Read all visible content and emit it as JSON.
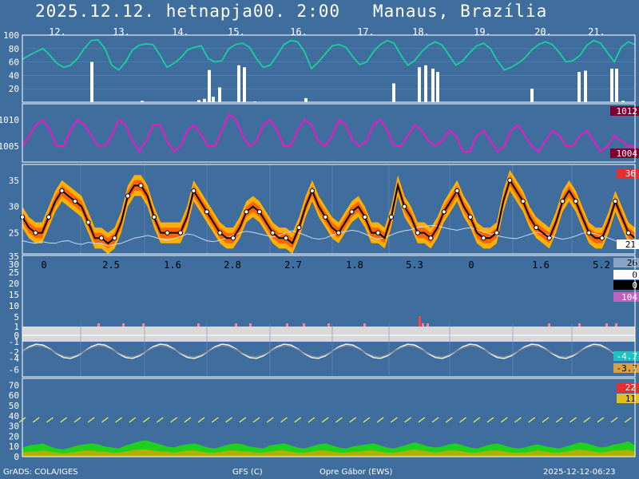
{
  "header": {
    "title": "2025.12.12. hetnapja00. 2:00   Manaus, Brazília"
  },
  "footer": {
    "left": "GrADS: COLA/IGES",
    "center_left": "GFS (C)",
    "center": "Opre Gábor (EWS)",
    "right": "2025-12-12-06:23"
  },
  "colors": {
    "background": "#3f6d9e",
    "humidity": "#19d0a0",
    "pressure": "#e020c0",
    "temp_band_outer": "#ffb000",
    "temp_band_inner": "#ff6400",
    "dewpoint": "#c8d8f0",
    "precip_bar": "#ffffff",
    "wind_arrow": "#ffff40",
    "wind_fill": "#1fd01f",
    "gust_fill": "#b0b000"
  },
  "chart_data": [
    {
      "panel": "humidity_precip",
      "type": "line",
      "day_labels": [
        "12.",
        "13.",
        "14.",
        "15.",
        "16.",
        "17.",
        "18.",
        "19.",
        "20.",
        "21."
      ],
      "yticks": [
        100,
        80,
        60,
        40,
        20
      ],
      "ylim": [
        0,
        100
      ],
      "humidity": [
        64,
        70,
        75,
        80,
        70,
        58,
        52,
        55,
        65,
        80,
        92,
        93,
        80,
        55,
        48,
        60,
        78,
        85,
        87,
        86,
        70,
        52,
        58,
        66,
        78,
        82,
        84,
        65,
        60,
        62,
        80,
        86,
        88,
        82,
        65,
        52,
        55,
        70,
        86,
        92,
        90,
        75,
        50,
        60,
        72,
        84,
        86,
        82,
        68,
        56,
        60,
        75,
        86,
        92,
        88,
        70,
        55,
        62,
        75,
        85,
        90,
        85,
        70,
        55,
        62,
        74,
        84,
        88,
        80,
        62,
        48,
        52,
        58,
        66,
        78,
        86,
        90,
        86,
        74,
        60,
        62,
        70,
        85,
        92,
        88,
        74,
        60,
        82,
        90,
        86
      ],
      "precip_bars": [
        [
          113,
          60
        ],
        [
          176,
          2
        ],
        [
          247,
          3
        ],
        [
          254,
          5
        ],
        [
          260,
          48
        ],
        [
          265,
          8
        ],
        [
          273,
          22
        ],
        [
          297,
          55
        ],
        [
          304,
          52
        ],
        [
          317,
          1
        ],
        [
          381,
          6
        ],
        [
          491,
          28
        ],
        [
          523,
          52
        ],
        [
          531,
          55
        ],
        [
          540,
          50
        ],
        [
          546,
          45
        ],
        [
          664,
          20
        ],
        [
          723,
          45
        ],
        [
          731,
          47
        ],
        [
          764,
          50
        ],
        [
          770,
          50
        ],
        [
          778,
          2
        ]
      ]
    },
    {
      "panel": "pressure",
      "type": "line",
      "yticks": [
        1010,
        1005
      ],
      "ylim": [
        1002,
        1013
      ],
      "values": [
        1005,
        1007,
        1009,
        1010,
        1008,
        1005,
        1005,
        1008,
        1010,
        1009,
        1007,
        1005,
        1005,
        1007,
        1010,
        1009,
        1006,
        1004,
        1006,
        1009,
        1009,
        1006,
        1004,
        1005,
        1008,
        1009,
        1007,
        1005,
        1005,
        1008,
        1011,
        1010,
        1007,
        1005,
        1006,
        1009,
        1010,
        1008,
        1005,
        1005,
        1008,
        1010,
        1009,
        1006,
        1005,
        1007,
        1010,
        1009,
        1006,
        1005,
        1006,
        1009,
        1010,
        1008,
        1005,
        1005,
        1007,
        1009,
        1008,
        1006,
        1005,
        1006,
        1008,
        1007,
        1004,
        1004,
        1007,
        1008,
        1006,
        1004,
        1005,
        1008,
        1009,
        1007,
        1005,
        1004,
        1006,
        1008,
        1007,
        1005,
        1005,
        1007,
        1008,
        1006,
        1004,
        1005,
        1007,
        1006,
        1005,
        1005
      ],
      "badges": {
        "max": "1012",
        "min": "1004"
      }
    },
    {
      "panel": "temperature",
      "type": "line",
      "yticks": [
        35,
        30,
        25
      ],
      "ylim": [
        21,
        38
      ],
      "values": [
        28,
        26,
        25,
        25,
        28,
        31,
        33,
        32,
        31,
        30,
        27,
        24,
        24,
        23,
        24,
        27,
        32,
        34,
        34,
        32,
        28,
        25,
        25,
        25,
        25,
        28,
        33,
        31,
        29,
        27,
        25,
        24,
        24,
        26,
        29,
        30,
        29,
        27,
        25,
        24,
        24,
        23,
        26,
        30,
        33,
        30,
        28,
        26,
        25,
        27,
        29,
        30,
        28,
        25,
        25,
        24,
        28,
        34,
        30,
        28,
        25,
        25,
        24,
        26,
        29,
        31,
        33,
        30,
        28,
        25,
        24,
        24,
        25,
        31,
        35,
        33,
        31,
        28,
        26,
        25,
        24,
        27,
        31,
        33,
        31,
        28,
        25,
        24,
        24,
        27,
        31,
        28,
        25,
        24
      ],
      "dewpoint": [
        23.5,
        23.2,
        23.0,
        23.3,
        23.1,
        23.0,
        23.4,
        23.5,
        23.0,
        22.8,
        23.2,
        23.0,
        23.0,
        22.5,
        22.8,
        23.0,
        23.5,
        24.0,
        24.2,
        24.5,
        24.2,
        23.8,
        23.6,
        23.9,
        24.3,
        24.8,
        24.6,
        24.0,
        23.5,
        23.3,
        23.6,
        24.0,
        24.5,
        25.0,
        25.3,
        25.1,
        24.8,
        24.5,
        24.2,
        24.5,
        25.0,
        25.4,
        25.0,
        24.5,
        24.0,
        23.8,
        24.0,
        24.5,
        25.0,
        25.2,
        25.5,
        25.3,
        24.8,
        24.2,
        23.8,
        24.1,
        24.6,
        25.1,
        25.4,
        25.6,
        26.0,
        26.2,
        26.4,
        26.3,
        26.0,
        25.7,
        25.5,
        25.8,
        26.0,
        25.6,
        25.2,
        24.8,
        24.5,
        24.2,
        24.0,
        23.9,
        24.3,
        24.7,
        25.1,
        24.9,
        24.5,
        24.1,
        23.8,
        24.0,
        24.4,
        24.9,
        25.1,
        24.8,
        24.4,
        24.0,
        23.5,
        23.1,
        23.0,
        23.4
      ],
      "badges": {
        "max": "36",
        "min": "21"
      }
    },
    {
      "panel": "precip_totals",
      "type": "table",
      "daily_totals": [
        "0",
        "2.5",
        "1.6",
        "2.8",
        "2.7",
        "1.8",
        "5.3",
        "0",
        "1.6",
        "5.2"
      ],
      "yticks": [
        "35",
        "30",
        "25",
        "20",
        "15",
        "10",
        "5",
        "1",
        "0",
        "-1",
        "-2",
        "-4",
        "-6"
      ],
      "badges": {
        "a": "26",
        "b": "0",
        "c": "0",
        "d": "104",
        "e": "-4.7",
        "f": "-3.7"
      }
    },
    {
      "panel": "wind",
      "type": "area",
      "yticks": [
        70,
        60,
        50,
        40,
        30,
        20,
        10,
        0
      ],
      "ylim": [
        0,
        75
      ],
      "wind": [
        9,
        11,
        12,
        13,
        10,
        8,
        7,
        9,
        11,
        12,
        13,
        12,
        10,
        9,
        8,
        11,
        13,
        15,
        16,
        14,
        12,
        10,
        9,
        11,
        12,
        13,
        11,
        9,
        8,
        10,
        12,
        13,
        12,
        10,
        9,
        8,
        11,
        12,
        13,
        11,
        9,
        8,
        10,
        12,
        13,
        11,
        9,
        8,
        10,
        11,
        12,
        13,
        11,
        9,
        8,
        10,
        12,
        14,
        12,
        10,
        9,
        10,
        12,
        13,
        11,
        9,
        8,
        10,
        12,
        13,
        11,
        9,
        8,
        9,
        11,
        12,
        10,
        9,
        8,
        10,
        12,
        14,
        13,
        11,
        9,
        10,
        12,
        13,
        15,
        11
      ],
      "gust": [
        4,
        5,
        5,
        6,
        5,
        4,
        3,
        4,
        5,
        6,
        6,
        5,
        5,
        4,
        4,
        5,
        6,
        7,
        7,
        6,
        5,
        5,
        4,
        5,
        6,
        6,
        5,
        4,
        4,
        5,
        6,
        6,
        5,
        5,
        4,
        4,
        5,
        6,
        6,
        5,
        4,
        4,
        5,
        6,
        6,
        5,
        4,
        4,
        5,
        5,
        6,
        6,
        5,
        4,
        4,
        5,
        6,
        7,
        6,
        5,
        4,
        5,
        6,
        6,
        5,
        4,
        4,
        5,
        6,
        6,
        5,
        4,
        4,
        4,
        5,
        6,
        5,
        4,
        4,
        5,
        6,
        7,
        6,
        5,
        4,
        5,
        6,
        6,
        7,
        5
      ],
      "badges": {
        "max": "22",
        "min": "11"
      }
    }
  ]
}
